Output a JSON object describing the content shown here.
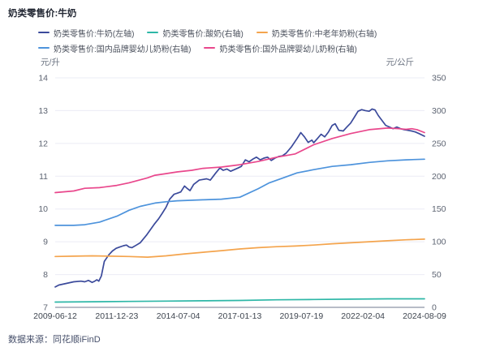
{
  "title": "奶类零售价:牛奶",
  "source": "数据来源：同花顺iFinD",
  "axes": {
    "left_unit": "元/升",
    "right_unit": "元/公斤"
  },
  "colors": {
    "milk": "#3b4a9b",
    "yogurt": "#2eb7a7",
    "elderly_powder": "#f4a44d",
    "domestic_infant": "#4d93dc",
    "foreign_infant": "#e9478c",
    "grid": "#ebecf5",
    "axis_line": "#b7bcc7"
  },
  "chart_data": {
    "type": "line",
    "title": "奶类零售价:牛奶",
    "grid": true,
    "legend_position": "top",
    "x_axis": {
      "note": "series point x values are fractions 0-1 of the time span",
      "ticks": [
        "2009-06-12",
        "2011-12-23",
        "2014-07-04",
        "2017-01-13",
        "2019-07-19",
        "2022-02-04",
        "2024-08-09"
      ]
    },
    "left_axis": {
      "unit": "元/升",
      "range": [
        7,
        14
      ],
      "ticks": [
        14,
        13,
        12,
        11,
        10,
        9,
        8,
        7
      ]
    },
    "right_axis": {
      "unit": "元/公斤",
      "range": [
        0,
        350
      ],
      "ticks": [
        350,
        300,
        250,
        200,
        150,
        100,
        50,
        0
      ]
    },
    "series": [
      {
        "name": "奶类零售价:牛奶(左轴)",
        "axis": "left",
        "color": "#3b4a9b",
        "points": [
          [
            0,
            7.62
          ],
          [
            0.01,
            7.68
          ],
          [
            0.03,
            7.73
          ],
          [
            0.05,
            7.78
          ],
          [
            0.07,
            7.8
          ],
          [
            0.08,
            7.78
          ],
          [
            0.09,
            7.82
          ],
          [
            0.1,
            7.76
          ],
          [
            0.107,
            7.8
          ],
          [
            0.113,
            7.84
          ],
          [
            0.118,
            7.8
          ],
          [
            0.125,
            7.96
          ],
          [
            0.133,
            8.4
          ],
          [
            0.145,
            8.6
          ],
          [
            0.155,
            8.72
          ],
          [
            0.165,
            8.8
          ],
          [
            0.175,
            8.84
          ],
          [
            0.185,
            8.88
          ],
          [
            0.193,
            8.9
          ],
          [
            0.2,
            8.84
          ],
          [
            0.208,
            8.82
          ],
          [
            0.22,
            8.9
          ],
          [
            0.23,
            8.97
          ],
          [
            0.247,
            9.2
          ],
          [
            0.268,
            9.53
          ],
          [
            0.28,
            9.7
          ],
          [
            0.29,
            9.87
          ],
          [
            0.3,
            10.05
          ],
          [
            0.31,
            10.3
          ],
          [
            0.322,
            10.45
          ],
          [
            0.33,
            10.48
          ],
          [
            0.34,
            10.52
          ],
          [
            0.35,
            10.7
          ],
          [
            0.358,
            10.62
          ],
          [
            0.365,
            10.56
          ],
          [
            0.375,
            10.75
          ],
          [
            0.39,
            10.88
          ],
          [
            0.4,
            10.9
          ],
          [
            0.41,
            10.92
          ],
          [
            0.42,
            10.88
          ],
          [
            0.435,
            11.1
          ],
          [
            0.446,
            11.25
          ],
          [
            0.455,
            11.18
          ],
          [
            0.465,
            11.22
          ],
          [
            0.475,
            11.15
          ],
          [
            0.485,
            11.2
          ],
          [
            0.495,
            11.25
          ],
          [
            0.504,
            11.3
          ],
          [
            0.515,
            11.5
          ],
          [
            0.525,
            11.44
          ],
          [
            0.535,
            11.52
          ],
          [
            0.545,
            11.58
          ],
          [
            0.555,
            11.5
          ],
          [
            0.565,
            11.55
          ],
          [
            0.575,
            11.58
          ],
          [
            0.585,
            11.48
          ],
          [
            0.595,
            11.55
          ],
          [
            0.605,
            11.6
          ],
          [
            0.615,
            11.62
          ],
          [
            0.625,
            11.7
          ],
          [
            0.64,
            11.9
          ],
          [
            0.655,
            12.15
          ],
          [
            0.665,
            12.33
          ],
          [
            0.675,
            12.2
          ],
          [
            0.685,
            12.03
          ],
          [
            0.695,
            12.1
          ],
          [
            0.7,
            12.02
          ],
          [
            0.71,
            12.15
          ],
          [
            0.72,
            12.28
          ],
          [
            0.73,
            12.2
          ],
          [
            0.74,
            12.35
          ],
          [
            0.75,
            12.55
          ],
          [
            0.758,
            12.6
          ],
          [
            0.768,
            12.4
          ],
          [
            0.78,
            12.38
          ],
          [
            0.79,
            12.5
          ],
          [
            0.8,
            12.62
          ],
          [
            0.81,
            12.8
          ],
          [
            0.82,
            12.98
          ],
          [
            0.83,
            13.03
          ],
          [
            0.84,
            13.0
          ],
          [
            0.85,
            12.98
          ],
          [
            0.858,
            13.05
          ],
          [
            0.866,
            13.02
          ],
          [
            0.875,
            12.85
          ],
          [
            0.885,
            12.7
          ],
          [
            0.895,
            12.55
          ],
          [
            0.905,
            12.5
          ],
          [
            0.915,
            12.45
          ],
          [
            0.925,
            12.5
          ],
          [
            0.935,
            12.45
          ],
          [
            0.945,
            12.42
          ],
          [
            0.955,
            12.4
          ],
          [
            0.965,
            12.38
          ],
          [
            0.975,
            12.35
          ],
          [
            0.985,
            12.3
          ],
          [
            1,
            12.22
          ]
        ]
      },
      {
        "name": "奶类零售价:酸奶(右轴)",
        "axis": "right",
        "color": "#2eb7a7",
        "points": [
          [
            0,
            8
          ],
          [
            0.1,
            8.5
          ],
          [
            0.2,
            9
          ],
          [
            0.3,
            9.5
          ],
          [
            0.4,
            10
          ],
          [
            0.5,
            10.5
          ],
          [
            0.6,
            11.5
          ],
          [
            0.7,
            12
          ],
          [
            0.8,
            12.5
          ],
          [
            0.9,
            13
          ],
          [
            1,
            13
          ]
        ]
      },
      {
        "name": "奶类零售价:中老年奶粉(右轴)",
        "axis": "right",
        "color": "#f4a44d",
        "points": [
          [
            0,
            77.5
          ],
          [
            0.05,
            78
          ],
          [
            0.1,
            78.5
          ],
          [
            0.15,
            78
          ],
          [
            0.2,
            77.5
          ],
          [
            0.25,
            76.5
          ],
          [
            0.3,
            78.5
          ],
          [
            0.35,
            81.5
          ],
          [
            0.4,
            84
          ],
          [
            0.45,
            86.5
          ],
          [
            0.5,
            89
          ],
          [
            0.55,
            91
          ],
          [
            0.6,
            92.5
          ],
          [
            0.65,
            93.5
          ],
          [
            0.7,
            95
          ],
          [
            0.75,
            97
          ],
          [
            0.8,
            98.5
          ],
          [
            0.85,
            100
          ],
          [
            0.9,
            101.5
          ],
          [
            0.95,
            103
          ],
          [
            1,
            104
          ]
        ]
      },
      {
        "name": "奶类零售价:国内品牌婴幼儿奶粉(右轴)",
        "axis": "right",
        "color": "#4d93dc",
        "points": [
          [
            0,
            125
          ],
          [
            0.05,
            125
          ],
          [
            0.08,
            126
          ],
          [
            0.12,
            130
          ],
          [
            0.167,
            139
          ],
          [
            0.2,
            148
          ],
          [
            0.23,
            154
          ],
          [
            0.27,
            159
          ],
          [
            0.3,
            161
          ],
          [
            0.33,
            162.5
          ],
          [
            0.4,
            164
          ],
          [
            0.45,
            165
          ],
          [
            0.5,
            168
          ],
          [
            0.55,
            181
          ],
          [
            0.58,
            190
          ],
          [
            0.62,
            198
          ],
          [
            0.655,
            205
          ],
          [
            0.7,
            210
          ],
          [
            0.75,
            215
          ],
          [
            0.8,
            217.5
          ],
          [
            0.85,
            221
          ],
          [
            0.9,
            223.5
          ],
          [
            0.95,
            225
          ],
          [
            1,
            226
          ]
        ]
      },
      {
        "name": "奶类零售价:国外品牌婴幼儿奶粉(右轴)",
        "axis": "right",
        "color": "#e9478c",
        "points": [
          [
            0,
            175
          ],
          [
            0.05,
            177.5
          ],
          [
            0.08,
            181.5
          ],
          [
            0.12,
            182.5
          ],
          [
            0.167,
            186
          ],
          [
            0.2,
            190
          ],
          [
            0.25,
            197.5
          ],
          [
            0.27,
            201.5
          ],
          [
            0.3,
            204
          ],
          [
            0.33,
            206.5
          ],
          [
            0.37,
            209
          ],
          [
            0.4,
            212
          ],
          [
            0.45,
            214
          ],
          [
            0.5,
            217.5
          ],
          [
            0.55,
            222.5
          ],
          [
            0.6,
            229
          ],
          [
            0.65,
            234
          ],
          [
            0.7,
            248
          ],
          [
            0.75,
            257.5
          ],
          [
            0.8,
            265
          ],
          [
            0.85,
            271
          ],
          [
            0.9,
            273.5
          ],
          [
            0.93,
            272.5
          ],
          [
            0.95,
            271.5
          ],
          [
            0.965,
            272.5
          ],
          [
            0.98,
            271
          ],
          [
            1,
            266.5
          ]
        ]
      }
    ]
  }
}
